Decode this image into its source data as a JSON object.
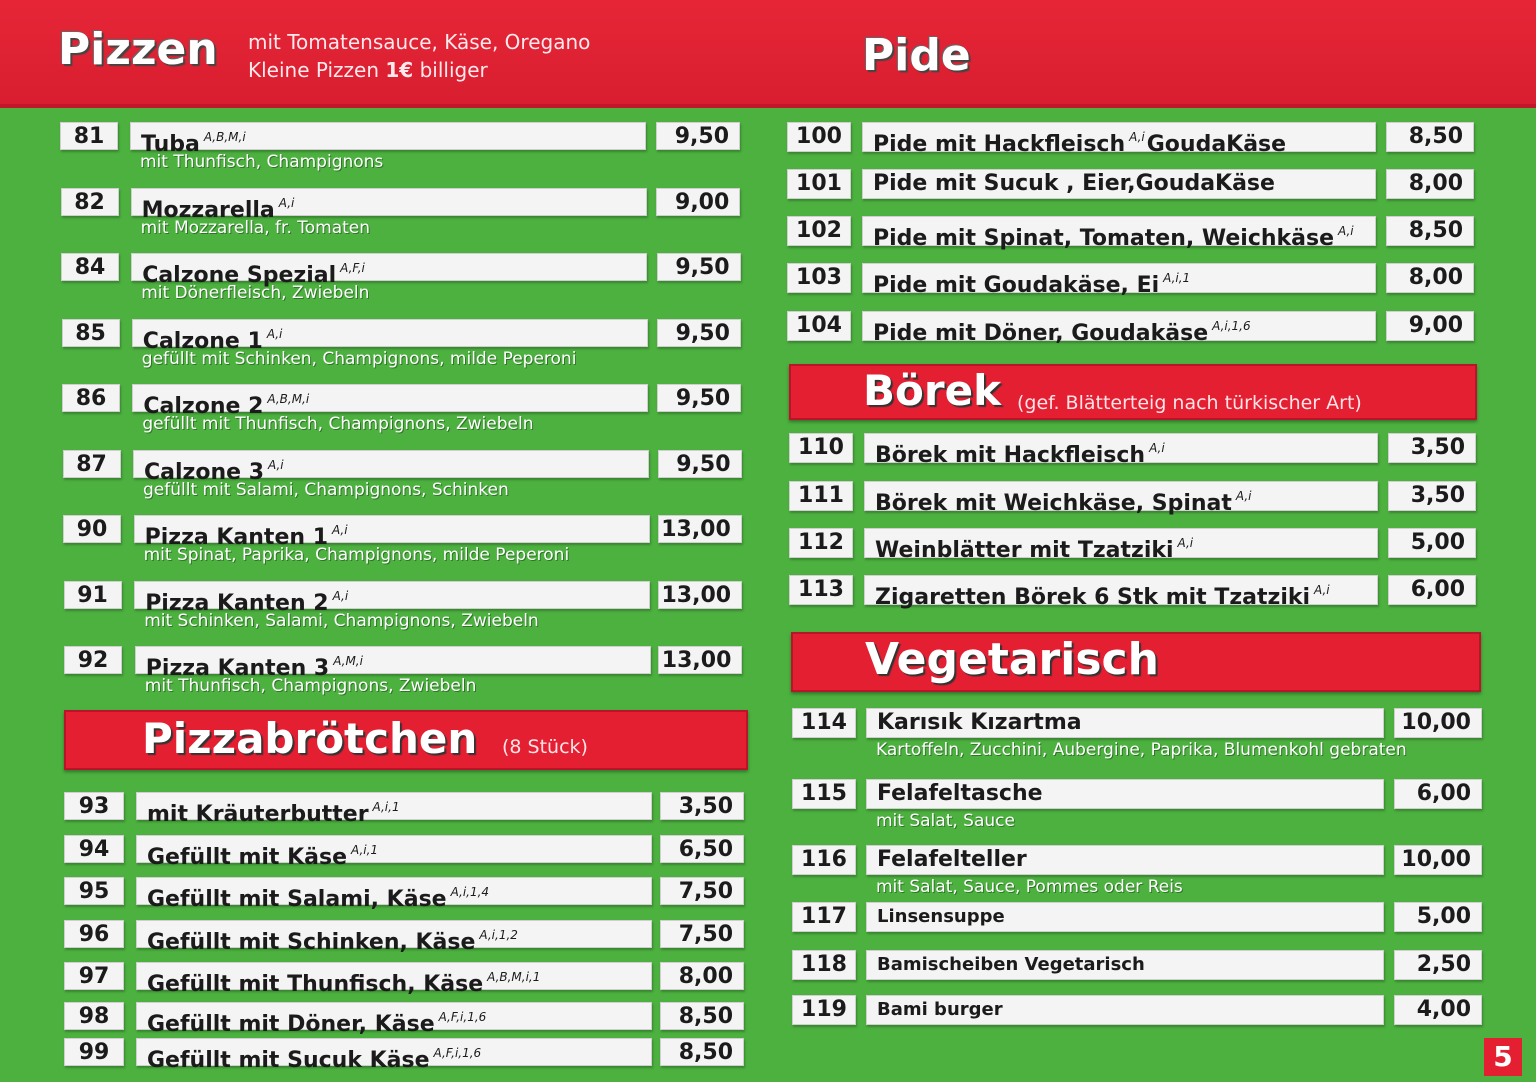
{
  "header": {
    "pizzen_title": "Pizzen",
    "pizzen_note_line1": "mit Tomatensauce, Käse, Oregano",
    "pizzen_note_line2_start": "Kleine Pizzen ",
    "pizzen_note_line2_bold": "1€",
    "pizzen_note_line2_end": " billiger",
    "pide_title": "Pide"
  },
  "pizzen": [
    {
      "num": "81",
      "name": "Tuba",
      "allergens": "A,B,M,i",
      "price": "9,50",
      "desc": "mit Thunfisch, Champignons"
    },
    {
      "num": "82",
      "name": "Mozzarella",
      "allergens": "A,i",
      "price": "9,00",
      "desc": "mit Mozzarella, fr. Tomaten"
    },
    {
      "num": "84",
      "name": "Calzone Spezial",
      "allergens": "A,F,i",
      "price": "9,50",
      "desc": "mit Dönerfleisch, Zwiebeln"
    },
    {
      "num": "85",
      "name": "Calzone 1",
      "allergens": "A,i",
      "price": "9,50",
      "desc": "gefüllt mit Schinken, Champignons, milde Peperoni"
    },
    {
      "num": "86",
      "name": "Calzone 2",
      "allergens": "A,B,M,i",
      "price": "9,50",
      "desc": "gefüllt mit Thunfisch, Champignons, Zwiebeln"
    },
    {
      "num": "87",
      "name": "Calzone 3",
      "allergens": "A,i",
      "price": "9,50",
      "desc": "gefüllt mit Salami, Champignons, Schinken"
    },
    {
      "num": "90",
      "name": "Pizza Kanten 1",
      "allergens": "A,i",
      "price": "13,00",
      "desc": "mit Spinat, Paprika, Champignons, milde Peperoni"
    },
    {
      "num": "91",
      "name": "Pizza Kanten 2",
      "allergens": "A,i",
      "price": "13,00",
      "desc": "mit Schinken, Salami, Champignons, Zwiebeln"
    },
    {
      "num": "92",
      "name": "Pizza Kanten 3",
      "allergens": "A,M,i",
      "price": "13,00",
      "desc": "mit Thunfisch, Champignons, Zwiebeln"
    }
  ],
  "pizzabroetchen": {
    "title": "Pizzabrötchen",
    "note": "(8 Stück)",
    "items": [
      {
        "num": "93",
        "name": "mit Kräuterbutter",
        "allergens": "A,i,1",
        "price": "3,50"
      },
      {
        "num": "94",
        "name": "Gefüllt mit Käse",
        "allergens": "A,i,1",
        "price": "6,50"
      },
      {
        "num": "95",
        "name": "Gefüllt mit Salami, Käse",
        "allergens": "A,i,1,4",
        "price": "7,50"
      },
      {
        "num": "96",
        "name": "Gefüllt mit Schinken, Käse",
        "allergens": "A,i,1,2",
        "price": "7,50"
      },
      {
        "num": "97",
        "name": "Gefüllt mit Thunfisch, Käse",
        "allergens": "A,B,M,i,1",
        "price": "8,00"
      },
      {
        "num": "98",
        "name": "Gefüllt mit Döner, Käse",
        "allergens": "A,F,i,1,6",
        "price": "8,50"
      },
      {
        "num": "99",
        "name": "Gefüllt mit  Sucuk  Käse",
        "allergens": "A,F,i,1,6",
        "price": "8,50"
      }
    ]
  },
  "pide": [
    {
      "num": "100",
      "name": "Pide mit Hackfleisch",
      "allergens": "A,i",
      "name_after": "GoudaKäse",
      "price": "8,50"
    },
    {
      "num": "101",
      "name": "Pide mit Sucuk , Eier,GoudaKäse",
      "allergens": "",
      "name_after": "",
      "price": "8,00"
    },
    {
      "num": "102",
      "name": "Pide mit Spinat, Tomaten, Weichkäse",
      "allergens": "A,i",
      "name_after": "",
      "price": "8,50"
    },
    {
      "num": "103",
      "name": "Pide mit Goudakäse, Ei",
      "allergens": "A,i,1",
      "name_after": "",
      "price": "8,00"
    },
    {
      "num": "104",
      "name": "Pide mit Döner, Goudakäse",
      "allergens": "A,i,1,6",
      "name_after": "",
      "price": "9,00"
    }
  ],
  "boerek": {
    "title": "Börek",
    "note": "(gef. Blätterteig nach türkischer Art)",
    "items": [
      {
        "num": "110",
        "name": "Börek mit Hackfleisch",
        "allergens": "A,i",
        "price": "3,50"
      },
      {
        "num": "111",
        "name": "Börek mit Weichkäse, Spinat",
        "allergens": "A,i",
        "price": "3,50"
      },
      {
        "num": "112",
        "name": "Weinblätter mit Tzatziki",
        "allergens": "A,i",
        "price": "5,00"
      },
      {
        "num": "113",
        "name": "Zigaretten Börek 6 Stk mit Tzatziki",
        "allergens": "A,i",
        "price": "6,00"
      }
    ]
  },
  "vegetarisch": {
    "title": "Vegetarisch",
    "items": [
      {
        "num": "114",
        "name": "Karısık Kızartma",
        "price": "10,00",
        "desc": "Kartoffeln, Zucchini, Aubergine, Paprika, Blumenkohl gebraten"
      },
      {
        "num": "115",
        "name": "Felafeltasche",
        "price": "6,00",
        "desc": "mit Salat, Sauce"
      },
      {
        "num": "116",
        "name": "Felafelteller",
        "price": "10,00",
        "desc": "mit Salat, Sauce, Pommes oder Reis"
      },
      {
        "num": "117",
        "name": "Linsensuppe",
        "price": "5,00",
        "desc": ""
      },
      {
        "num": "118",
        "name": "Bamischeiben Vegetarisch",
        "price": "2,50",
        "desc": ""
      },
      {
        "num": "119",
        "name": "Bami burger",
        "price": "4,00",
        "desc": ""
      }
    ]
  },
  "page_number": "5"
}
